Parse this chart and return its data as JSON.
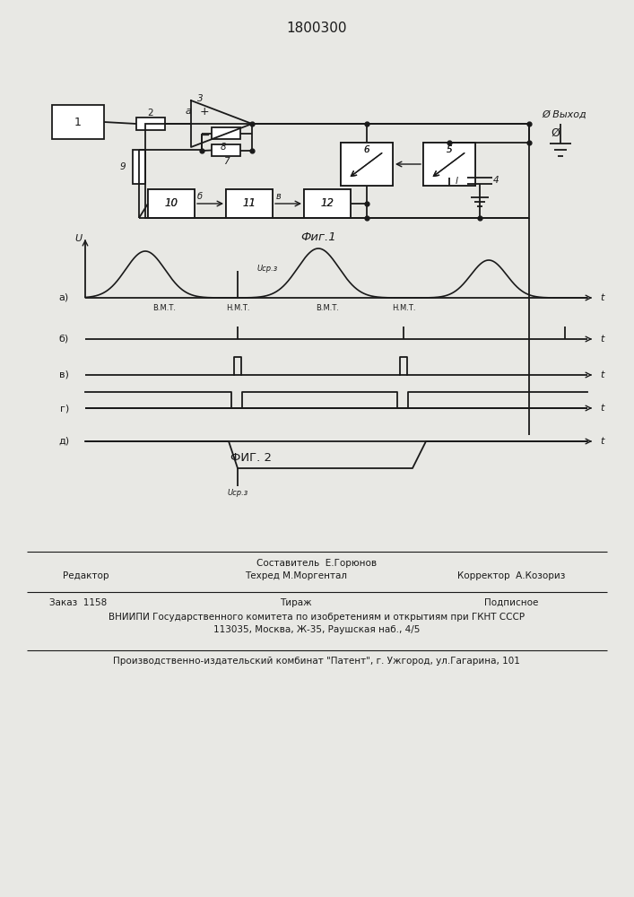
{
  "title": "1800300",
  "fig1_label": "Фиг.1",
  "fig2_label": "ФИГ. 2",
  "bg": "#e8e8e4",
  "lc": "#1a1a1a",
  "footer": {
    "line1_center": "Составитель  Е.Горюнов",
    "line2_left": "Редактор",
    "line2_center": "Техред М.Моргентал",
    "line2_right": "Корректор  А.Козориз",
    "line3_left": "Заказ  1158",
    "line3_center": "Тираж",
    "line3_right": "Подписное",
    "line4": "ВНИИПИ Государственного комитета по изобретениям и открытиям при ГКНТ СССР",
    "line5": "113035, Москва, Ж-35, Раушская наб., 4/5",
    "line6": "Производственно-издательский комбинат \"Патент\", г. Ужгород, ул.Гагарина, 101"
  }
}
